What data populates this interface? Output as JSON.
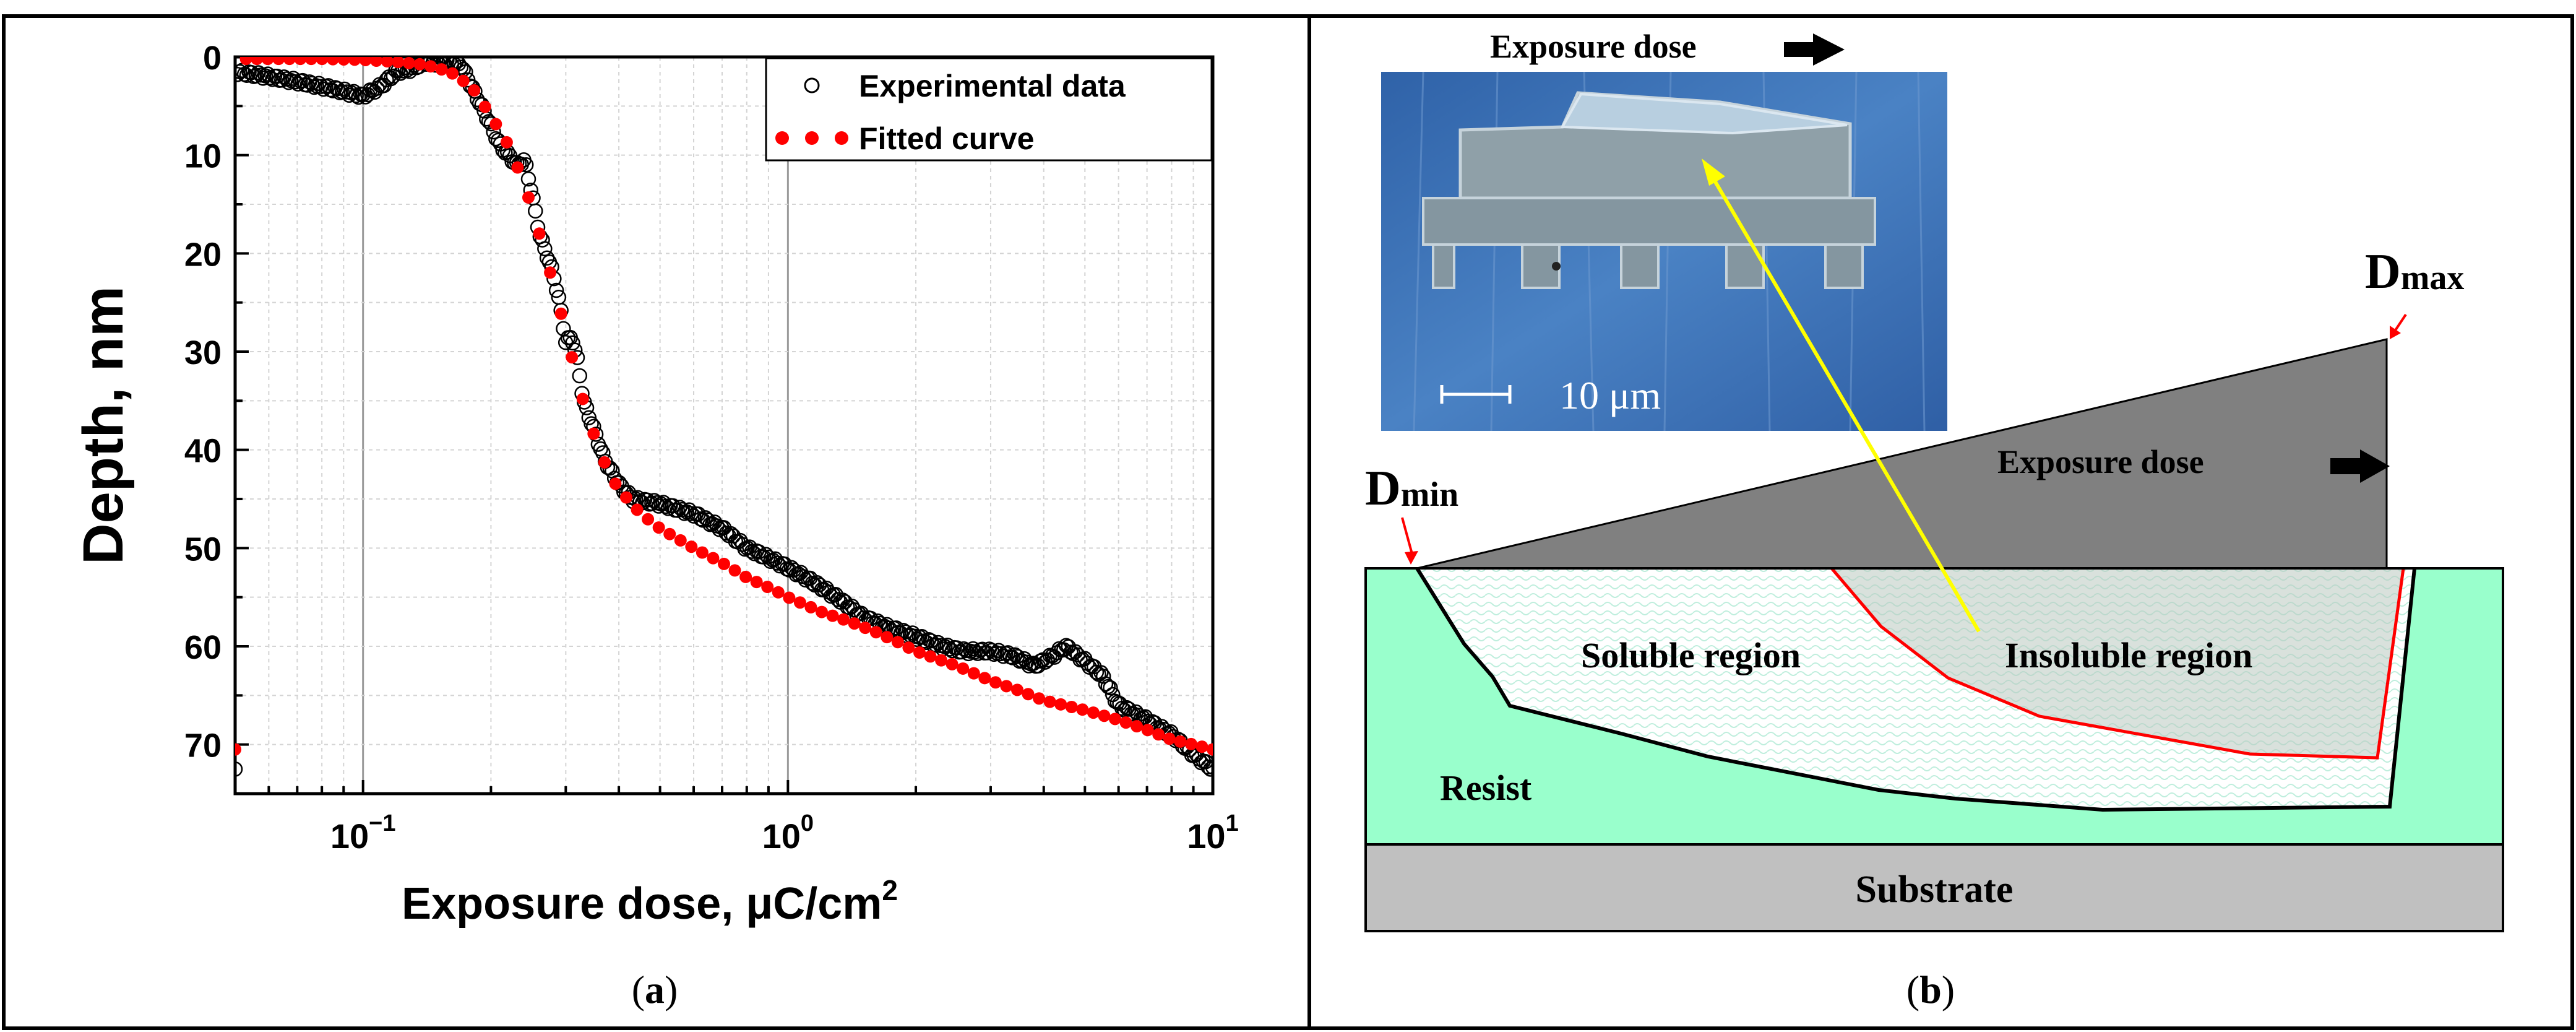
{
  "panels": {
    "a_label": "(a)",
    "b_label": "(b)"
  },
  "chart_data": {
    "type": "scatter",
    "xscale": "log",
    "xlim": [
      0.05,
      10
    ],
    "ylim": [
      75,
      0
    ],
    "ylim_note": "y axis inverted: 0 at top, 75 at bottom",
    "xlabel_main": "Exposure dose, μC/cm",
    "xlabel_sup": "2",
    "ylabel": "Depth, nm",
    "x_ticks": [
      {
        "value": 0.1,
        "base": "10",
        "exp": "−1"
      },
      {
        "value": 1,
        "base": "10",
        "exp": "0"
      },
      {
        "value": 10,
        "base": "10",
        "exp": "1"
      }
    ],
    "y_ticks": [
      0,
      10,
      20,
      30,
      40,
      50,
      60,
      70
    ],
    "grid": true,
    "legend_position": "top-right",
    "series": [
      {
        "name": "Experimental data",
        "marker": "open-circle",
        "color": "#000000",
        "points": [
          [
            0.05,
            1.5
          ],
          [
            0.06,
            2
          ],
          [
            0.07,
            2.5
          ],
          [
            0.08,
            3
          ],
          [
            0.09,
            3.5
          ],
          [
            0.1,
            4
          ],
          [
            0.11,
            3
          ],
          [
            0.12,
            1.5
          ],
          [
            0.13,
            1.2
          ],
          [
            0.14,
            0.5
          ],
          [
            0.15,
            0.6
          ],
          [
            0.16,
            0.5
          ],
          [
            0.17,
            0.8
          ],
          [
            0.18,
            3
          ],
          [
            0.19,
            5
          ],
          [
            0.2,
            7
          ],
          [
            0.21,
            9
          ],
          [
            0.22,
            10
          ],
          [
            0.23,
            11
          ],
          [
            0.24,
            10.5
          ],
          [
            0.25,
            14
          ],
          [
            0.26,
            18
          ],
          [
            0.27,
            20
          ],
          [
            0.28,
            22
          ],
          [
            0.29,
            25
          ],
          [
            0.3,
            29
          ],
          [
            0.31,
            28.5
          ],
          [
            0.32,
            31
          ],
          [
            0.33,
            35
          ],
          [
            0.35,
            38
          ],
          [
            0.37,
            41
          ],
          [
            0.4,
            43.5
          ],
          [
            0.43,
            45
          ],
          [
            0.5,
            45.5
          ],
          [
            0.6,
            46.5
          ],
          [
            0.7,
            48
          ],
          [
            0.8,
            50
          ],
          [
            0.9,
            51
          ],
          [
            1.0,
            52
          ],
          [
            1.1,
            53
          ],
          [
            1.2,
            54
          ],
          [
            1.3,
            55
          ],
          [
            1.4,
            56
          ],
          [
            1.5,
            57
          ],
          [
            1.7,
            58
          ],
          [
            2.0,
            59
          ],
          [
            2.3,
            60
          ],
          [
            2.6,
            60.5
          ],
          [
            3.0,
            60.5
          ],
          [
            3.4,
            61
          ],
          [
            3.8,
            62
          ],
          [
            4.2,
            61
          ],
          [
            4.5,
            60
          ],
          [
            5.0,
            61.5
          ],
          [
            5.5,
            63
          ],
          [
            6.0,
            66
          ],
          [
            7.0,
            67.5
          ],
          [
            8.0,
            69
          ],
          [
            9.0,
            71
          ],
          [
            10.0,
            72.5
          ]
        ]
      },
      {
        "name": "Fitted curve",
        "marker": "filled-circle",
        "color": "#ff0000",
        "points": [
          [
            0.05,
            0.2
          ],
          [
            0.06,
            0.2
          ],
          [
            0.07,
            0.2
          ],
          [
            0.08,
            0.2
          ],
          [
            0.09,
            0.25
          ],
          [
            0.1,
            0.3
          ],
          [
            0.12,
            0.5
          ],
          [
            0.14,
            0.8
          ],
          [
            0.16,
            1.5
          ],
          [
            0.18,
            3
          ],
          [
            0.2,
            6
          ],
          [
            0.22,
            9
          ],
          [
            0.24,
            13
          ],
          [
            0.26,
            18
          ],
          [
            0.28,
            23
          ],
          [
            0.3,
            28
          ],
          [
            0.32,
            33
          ],
          [
            0.34,
            37
          ],
          [
            0.36,
            40
          ],
          [
            0.38,
            42.5
          ],
          [
            0.4,
            44
          ],
          [
            0.45,
            46.5
          ],
          [
            0.5,
            48
          ],
          [
            0.6,
            50
          ],
          [
            0.7,
            51.5
          ],
          [
            0.8,
            53
          ],
          [
            0.9,
            54
          ],
          [
            1.0,
            55
          ],
          [
            1.2,
            56.5
          ],
          [
            1.4,
            57.5
          ],
          [
            1.6,
            58.5
          ],
          [
            1.8,
            59.5
          ],
          [
            2.0,
            60.5
          ],
          [
            2.5,
            62
          ],
          [
            3.0,
            63.5
          ],
          [
            3.5,
            64.5
          ],
          [
            4.0,
            65.5
          ],
          [
            5.0,
            66.5
          ],
          [
            6.0,
            67.5
          ],
          [
            7.0,
            68.5
          ],
          [
            8.0,
            69.5
          ],
          [
            9.0,
            70
          ],
          [
            10.0,
            70.5
          ]
        ]
      }
    ]
  },
  "diagram": {
    "top_arrow_label": "Exposure dose",
    "inner_arrow_label": "Exposure dose",
    "dmin_main": "D",
    "dmin_sub": "min",
    "dmax_main": "D",
    "dmax_sub": "max",
    "scale_bar_label": "10 μm",
    "soluble_label": "Soluble region",
    "insoluble_label": "Insoluble region",
    "resist_label": "Resist",
    "substrate_label": "Substrate",
    "colors": {
      "resist": "#99ffcc",
      "substrate": "#c0c0c0",
      "mask": "#808080",
      "insoluble_line": "#ff0000",
      "pointer_arrow": "#ffff00",
      "micrograph_bg": "#3a6fb0"
    }
  }
}
